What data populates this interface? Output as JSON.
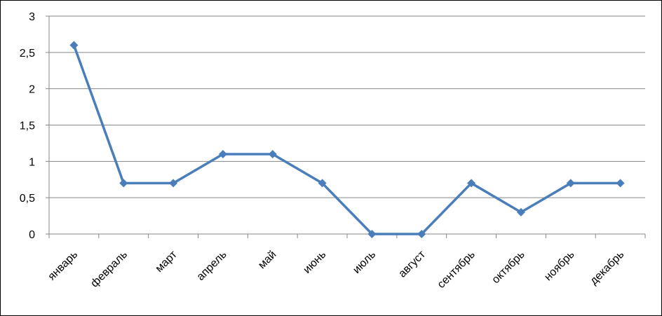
{
  "chart_data": {
    "type": "line",
    "title": "",
    "xlabel": "",
    "ylabel": "",
    "categories": [
      "январь",
      "февраль",
      "март",
      "апрель",
      "май",
      "июнь",
      "июль",
      "август",
      "сентябрь",
      "октябрь",
      "ноябрь",
      "декабрь"
    ],
    "series": [
      {
        "values": [
          2.6,
          0.7,
          0.7,
          1.1,
          1.1,
          0.7,
          0,
          0,
          0.7,
          0.3,
          0.7,
          0.7
        ]
      }
    ],
    "ylim": [
      0,
      3
    ],
    "yticks": [
      "0",
      "0,5",
      "1",
      "1,5",
      "2",
      "2,5",
      "3"
    ],
    "grid": true,
    "legend": "none",
    "line_color": "#4a7ebb",
    "grid_color": "#878787"
  }
}
